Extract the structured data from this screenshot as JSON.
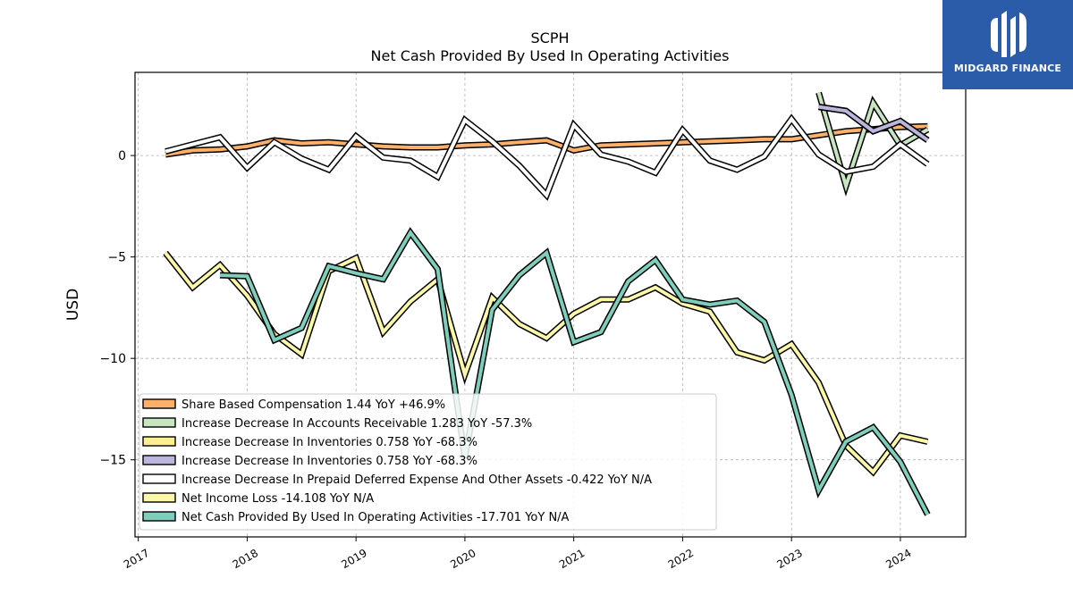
{
  "chart_data": {
    "type": "line",
    "title": "SCPH",
    "subtitle": "Net Cash Provided By Used In Operating Activities",
    "ylabel": "USD",
    "xlabel": "",
    "xlim": [
      2016.97,
      2024.6
    ],
    "ylim": [
      -18.8,
      4.1
    ],
    "x_ticks": [
      "2017",
      "2018",
      "2019",
      "2020",
      "2021",
      "2022",
      "2023",
      "2024"
    ],
    "y_ticks": [
      0,
      -5,
      -10,
      -15
    ],
    "grid": true,
    "legend_position": "lower-left",
    "series": [
      {
        "name": "Share Based Compensation",
        "legend": "Share Based Compensation  1.44 YoY +46.9%",
        "color": "#fdb06a",
        "style": "band",
        "points": [
          [
            2017.25,
            0.05
          ],
          [
            2017.5,
            0.25
          ],
          [
            2017.75,
            0.3
          ],
          [
            2018.0,
            0.45
          ],
          [
            2018.25,
            0.75
          ],
          [
            2018.5,
            0.6
          ],
          [
            2018.75,
            0.65
          ],
          [
            2019.0,
            0.55
          ],
          [
            2019.25,
            0.45
          ],
          [
            2019.5,
            0.4
          ],
          [
            2019.75,
            0.4
          ],
          [
            2020.0,
            0.5
          ],
          [
            2020.25,
            0.55
          ],
          [
            2020.5,
            0.65
          ],
          [
            2020.75,
            0.75
          ],
          [
            2021.0,
            0.25
          ],
          [
            2021.25,
            0.5
          ],
          [
            2021.5,
            0.55
          ],
          [
            2021.75,
            0.6
          ],
          [
            2022.0,
            0.65
          ],
          [
            2022.25,
            0.7
          ],
          [
            2022.5,
            0.75
          ],
          [
            2022.75,
            0.8
          ],
          [
            2023.0,
            0.8
          ],
          [
            2023.25,
            1.0
          ],
          [
            2023.5,
            1.2
          ],
          [
            2023.75,
            1.3
          ],
          [
            2024.0,
            1.4
          ],
          [
            2024.25,
            1.44
          ]
        ]
      },
      {
        "name": "Increase Decrease In Accounts Receivable",
        "legend": "Increase Decrease In Accounts Receivable  1.283 YoY -57.3%",
        "color": "#c7e6c0",
        "style": "line",
        "points": [
          [
            2023.25,
            3.1
          ],
          [
            2023.5,
            -1.5
          ],
          [
            2023.75,
            2.6
          ],
          [
            2024.0,
            0.5
          ],
          [
            2024.25,
            1.283
          ]
        ]
      },
      {
        "name": "Increase Decrease In Inventories",
        "legend": "Increase Decrease In Inventories  0.758 YoY -68.3%",
        "color": "#fdf08a",
        "style": "line",
        "points": [
          [
            2023.25,
            2.4
          ],
          [
            2023.5,
            2.2
          ],
          [
            2023.75,
            1.2
          ],
          [
            2024.0,
            1.7
          ],
          [
            2024.25,
            0.758
          ]
        ]
      },
      {
        "name": "Increase Decrease In Inventories",
        "legend": "Increase Decrease In Inventories  0.758 YoY -68.3%",
        "color": "#bcb6dd",
        "style": "line",
        "points": [
          [
            2023.25,
            2.4
          ],
          [
            2023.5,
            2.2
          ],
          [
            2023.75,
            1.2
          ],
          [
            2024.0,
            1.7
          ],
          [
            2024.25,
            0.758
          ]
        ]
      },
      {
        "name": "Increase Decrease In Prepaid Deferred Expense And Other Assets",
        "legend": "Increase Decrease In Prepaid Deferred Expense And Other Assets  -0.422 YoY N/A",
        "color": "#ffffff",
        "style": "band",
        "points": [
          [
            2017.25,
            0.2
          ],
          [
            2017.5,
            0.55
          ],
          [
            2017.75,
            0.9
          ],
          [
            2018.0,
            -0.6
          ],
          [
            2018.25,
            0.65
          ],
          [
            2018.5,
            -0.15
          ],
          [
            2018.75,
            -0.7
          ],
          [
            2019.0,
            0.95
          ],
          [
            2019.25,
            -0.1
          ],
          [
            2019.5,
            -0.25
          ],
          [
            2019.75,
            -1.05
          ],
          [
            2020.0,
            1.75
          ],
          [
            2020.25,
            0.7
          ],
          [
            2020.5,
            -0.5
          ],
          [
            2020.75,
            -1.95
          ],
          [
            2021.0,
            1.5
          ],
          [
            2021.25,
            0.05
          ],
          [
            2021.5,
            -0.3
          ],
          [
            2021.75,
            -0.85
          ],
          [
            2022.0,
            1.25
          ],
          [
            2022.25,
            -0.25
          ],
          [
            2022.5,
            -0.7
          ],
          [
            2022.75,
            -0.05
          ],
          [
            2023.0,
            1.8
          ],
          [
            2023.25,
            0.05
          ],
          [
            2023.5,
            -0.8
          ],
          [
            2023.75,
            -0.55
          ],
          [
            2024.0,
            0.55
          ],
          [
            2024.25,
            -0.422
          ]
        ]
      },
      {
        "name": "Net Income Loss",
        "legend": "Net Income Loss  -14.108 YoY N/A",
        "color": "#fdf7a9",
        "style": "line",
        "points": [
          [
            2017.25,
            -4.8
          ],
          [
            2017.5,
            -6.5
          ],
          [
            2017.75,
            -5.4
          ],
          [
            2018.0,
            -6.9
          ],
          [
            2018.25,
            -8.8
          ],
          [
            2018.5,
            -9.8
          ],
          [
            2018.75,
            -5.7
          ],
          [
            2019.0,
            -5.05
          ],
          [
            2019.25,
            -8.7
          ],
          [
            2019.5,
            -7.2
          ],
          [
            2019.75,
            -6.1
          ],
          [
            2020.0,
            -10.8
          ],
          [
            2020.25,
            -7.0
          ],
          [
            2020.5,
            -8.3
          ],
          [
            2020.75,
            -9.0
          ],
          [
            2021.0,
            -7.8
          ],
          [
            2021.25,
            -7.1
          ],
          [
            2021.5,
            -7.1
          ],
          [
            2021.75,
            -6.5
          ],
          [
            2022.0,
            -7.3
          ],
          [
            2022.25,
            -7.7
          ],
          [
            2022.5,
            -9.7
          ],
          [
            2022.75,
            -10.1
          ],
          [
            2023.0,
            -9.3
          ],
          [
            2023.25,
            -11.2
          ],
          [
            2023.5,
            -14.3
          ],
          [
            2023.75,
            -15.6
          ],
          [
            2024.0,
            -13.8
          ],
          [
            2024.25,
            -14.108
          ]
        ]
      },
      {
        "name": "Net Cash Provided By Used In Operating Activities",
        "legend": "Net Cash Provided By Used In Operating Activities  -17.701 YoY N/A",
        "color": "#7fcdbb",
        "style": "line",
        "points": [
          [
            2017.75,
            -5.9
          ],
          [
            2018.0,
            -5.95
          ],
          [
            2018.25,
            -9.1
          ],
          [
            2018.5,
            -8.5
          ],
          [
            2018.75,
            -5.45
          ],
          [
            2019.0,
            -5.8
          ],
          [
            2019.25,
            -6.1
          ],
          [
            2019.5,
            -3.8
          ],
          [
            2019.75,
            -5.6
          ],
          [
            2020.0,
            -14.9
          ],
          [
            2020.25,
            -7.6
          ],
          [
            2020.5,
            -5.9
          ],
          [
            2020.75,
            -4.8
          ],
          [
            2021.0,
            -9.2
          ],
          [
            2021.25,
            -8.7
          ],
          [
            2021.5,
            -6.2
          ],
          [
            2021.75,
            -5.15
          ],
          [
            2022.0,
            -7.1
          ],
          [
            2022.25,
            -7.35
          ],
          [
            2022.5,
            -7.15
          ],
          [
            2022.75,
            -8.2
          ],
          [
            2023.0,
            -11.8
          ],
          [
            2023.25,
            -16.5
          ],
          [
            2023.5,
            -14.1
          ],
          [
            2023.75,
            -13.4
          ],
          [
            2024.0,
            -15.1
          ],
          [
            2024.25,
            -17.701
          ]
        ]
      }
    ]
  },
  "logo": {
    "text": "MIDGARD FINANCE",
    "color": "#2a5caa"
  }
}
